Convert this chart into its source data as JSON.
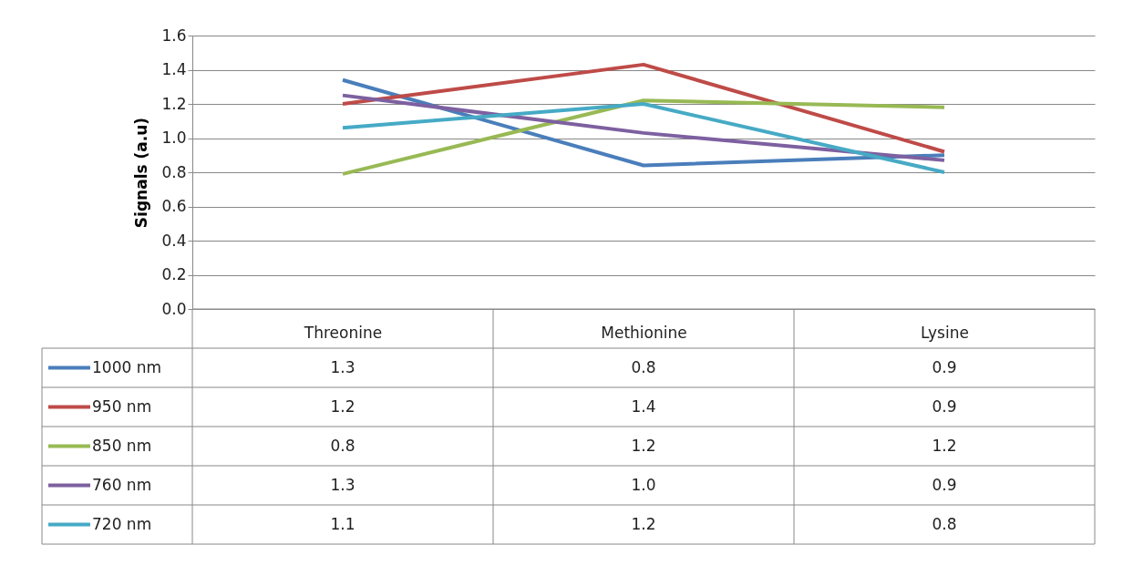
{
  "chart_data": {
    "type": "line",
    "ylabel": "Signals (a.u)",
    "categories": [
      "Threonine",
      "Methionine",
      "Lysine"
    ],
    "series": [
      {
        "name": "1000 nm",
        "color": "#4a7ebb",
        "values": [
          1.34,
          0.84,
          0.9
        ],
        "value_labels": [
          "1.3",
          "0.8",
          "0.9"
        ]
      },
      {
        "name": "950 nm",
        "color": "#be4b48",
        "values": [
          1.2,
          1.43,
          0.92
        ],
        "value_labels": [
          "1.2",
          "1.4",
          "0.9"
        ]
      },
      {
        "name": "850 nm",
        "color": "#98b954",
        "values": [
          0.79,
          1.22,
          1.18
        ],
        "value_labels": [
          "0.8",
          "1.2",
          "1.2"
        ]
      },
      {
        "name": "760 nm",
        "color": "#7d60a0",
        "values": [
          1.25,
          1.03,
          0.87
        ],
        "value_labels": [
          "1.3",
          "1.0",
          "0.9"
        ]
      },
      {
        "name": "720 nm",
        "color": "#46aac5",
        "values": [
          1.06,
          1.2,
          0.8
        ],
        "value_labels": [
          "1.1",
          "1.2",
          "0.8"
        ]
      }
    ],
    "ylim": [
      0,
      1.6
    ],
    "yticks": [
      {
        "value": 0,
        "label": "0.0"
      },
      0.2,
      0.4,
      0.6,
      0.8,
      {
        "value": 1,
        "label": "1.0"
      },
      1.2,
      1.4,
      1.6
    ],
    "grid": "y",
    "marker": "none",
    "line_style": "solid",
    "legend": "bottom"
  }
}
